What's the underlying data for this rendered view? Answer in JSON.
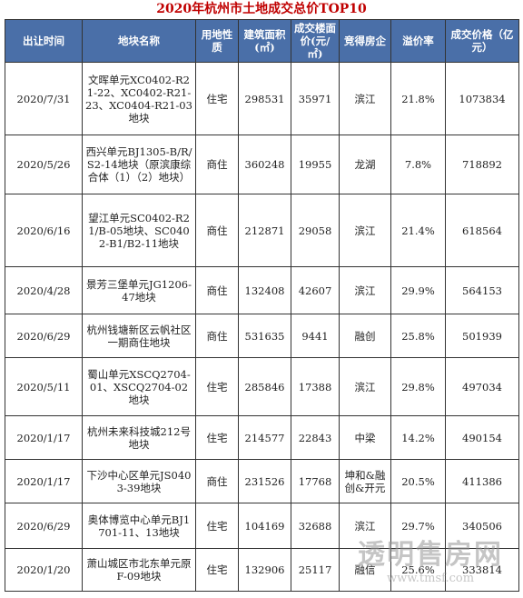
{
  "title": "2020年杭州市土地成交总价TOP10",
  "table": {
    "header": [
      "出让时间",
      "地块名称",
      "用地性质",
      "建筑面积(㎡)",
      "成交楼面价(元/㎡)",
      "竞得房企",
      "溢价率",
      "成交价格（亿元）"
    ],
    "rows": [
      [
        "2020/7/31",
        "文晖单元XC0402-R21-22、XC0402-R21-23、XC0404-R21-03地块",
        "住宅",
        "298531",
        "35971",
        "滨江",
        "21.8%",
        "1073834"
      ],
      [
        "2020/5/26",
        "西兴单元BJ1305-B/R/S2-14地块（原滨康综合体（1）（2）地块）",
        "商住",
        "360248",
        "19955",
        "龙湖",
        "7.8%",
        "718892"
      ],
      [
        "2020/6/16",
        "望江单元SC0402-R21/B-05地块、SC0402-B1/B2-11地块",
        "商住",
        "212871",
        "29058",
        "滨江",
        "21.4%",
        "618564"
      ],
      [
        "2020/4/28",
        "景芳三堡单元JG1206-47地块",
        "商住",
        "132408",
        "42607",
        "滨江",
        "29.9%",
        "564153"
      ],
      [
        "2020/6/29",
        "杭州钱塘新区云帆社区一期商住地块",
        "商住",
        "531635",
        "9441",
        "融创",
        "25.8%",
        "501939"
      ],
      [
        "2020/5/11",
        "蜀山单元XSCQ2704-01、XSCQ2704-02地块",
        "住宅",
        "285846",
        "17388",
        "滨江",
        "29.8%",
        "497034"
      ],
      [
        "2020/1/17",
        "杭州未来科技城212号地块",
        "住宅",
        "214577",
        "22843",
        "中梁",
        "14.2%",
        "490154"
      ],
      [
        "2020/1/17",
        "下沙中心区单元JS0403-39地块",
        "商住",
        "231526",
        "17768",
        "坤和&融创&开元",
        "20.5%",
        "411386"
      ],
      [
        "2020/6/29",
        "奥体博览中心单元BJ1701-11、13地块",
        "住宅",
        "104169",
        "32688",
        "滨江",
        "29.7%",
        "340506"
      ],
      [
        "2020/1/20",
        "萧山城区市北东单元原F-09地块",
        "住宅",
        "132906",
        "25117",
        "融信",
        "25.6%",
        "333814"
      ]
    ]
  },
  "watermark": {
    "name": "透明售房网",
    "url": "www.tmsf.com"
  }
}
